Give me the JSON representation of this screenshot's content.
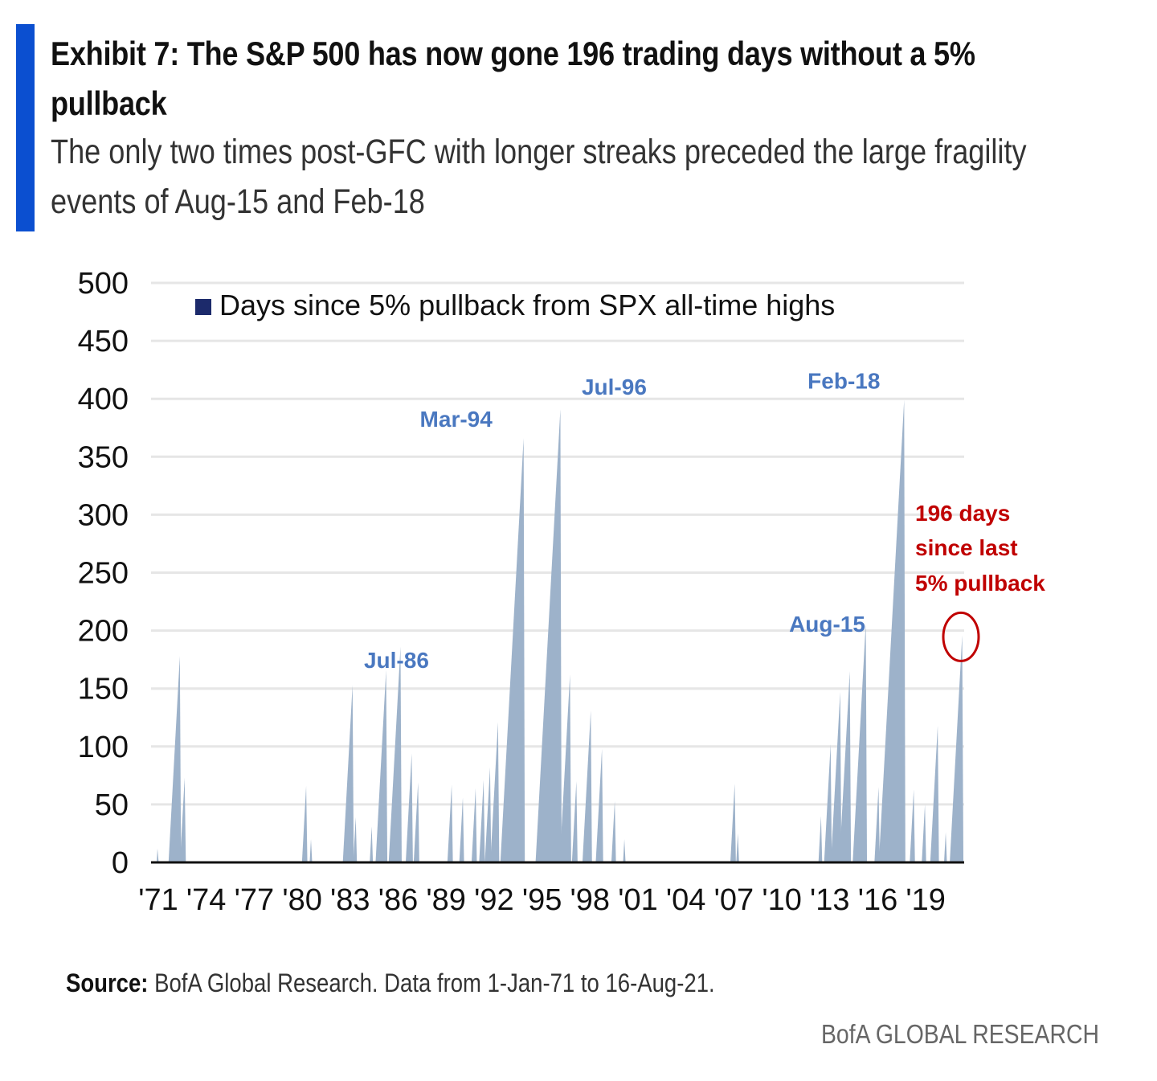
{
  "header": {
    "title": "Exhibit 7: The S&P 500 has now gone 196 trading days without a 5% pullback",
    "subtitle": "The only two times post-GFC with longer streaks preceded the large fragility events of Aug-15 and Feb-18"
  },
  "chart_data": {
    "type": "area",
    "title": "Exhibit 7: The S&P 500 has now gone 196 trading days without a 5% pullback",
    "ylabel": "",
    "xlabel": "",
    "ylim": [
      0,
      500
    ],
    "xlim": [
      1971,
      2021.7
    ],
    "grid": true,
    "legend": {
      "position": "top-left",
      "entries": [
        "Days since 5% pullback from SPX all-time highs"
      ]
    },
    "yticks": [
      0,
      50,
      100,
      150,
      200,
      250,
      300,
      350,
      400,
      450,
      500
    ],
    "xtick_labels": [
      "'71",
      "'74",
      "'77",
      "'80",
      "'83",
      "'86",
      "'89",
      "'92",
      "'95",
      "'98",
      "'01",
      "'04",
      "'07",
      "'10",
      "'13",
      "'16",
      "'19"
    ],
    "xtick_years": [
      1971,
      1974,
      1977,
      1980,
      1983,
      1986,
      1989,
      1992,
      1995,
      1998,
      2001,
      2004,
      2007,
      2010,
      2013,
      2016,
      2019
    ],
    "series": [
      {
        "name": "Days since 5% pullback from SPX all-time highs",
        "color": "#9db2ca",
        "note": "streak peaks: [year, trading days]; each streak ramps up linearly at 252 trading days/year then resets to 0",
        "peaks": [
          [
            1971.3,
            12
          ],
          [
            1972.7,
            178
          ],
          [
            1973.0,
            73
          ],
          [
            1980.6,
            66
          ],
          [
            1980.9,
            20
          ],
          [
            1983.5,
            153
          ],
          [
            1983.7,
            39
          ],
          [
            1984.7,
            31
          ],
          [
            1985.6,
            166
          ],
          [
            1986.5,
            186
          ],
          [
            1987.2,
            94
          ],
          [
            1987.6,
            69
          ],
          [
            1989.7,
            67
          ],
          [
            1990.4,
            56
          ],
          [
            1991.2,
            64
          ],
          [
            1991.7,
            71
          ],
          [
            1992.1,
            82
          ],
          [
            1992.6,
            121
          ],
          [
            1994.2,
            366
          ],
          [
            1996.5,
            391
          ],
          [
            1997.1,
            162
          ],
          [
            1997.5,
            70
          ],
          [
            1998.4,
            131
          ],
          [
            1999.1,
            98
          ],
          [
            1999.9,
            53
          ],
          [
            2000.5,
            20
          ],
          [
            2007.4,
            68
          ],
          [
            2007.6,
            25
          ],
          [
            2012.8,
            40
          ],
          [
            2013.4,
            102
          ],
          [
            2014.0,
            147
          ],
          [
            2014.6,
            165
          ],
          [
            2015.6,
            206
          ],
          [
            2016.4,
            65
          ],
          [
            2018.0,
            399
          ],
          [
            2018.6,
            63
          ],
          [
            2019.3,
            50
          ],
          [
            2020.1,
            118
          ],
          [
            2020.6,
            26
          ],
          [
            2021.63,
            196
          ]
        ]
      }
    ],
    "annotations": {
      "blue": [
        {
          "text": "Jul-86",
          "year": 1986.5,
          "value": 186
        },
        {
          "text": "Mar-94",
          "year": 1994.2,
          "value": 366
        },
        {
          "text": "Jul-96",
          "year": 1996.5,
          "value": 391
        },
        {
          "text": "Aug-15",
          "year": 2015.6,
          "value": 206
        },
        {
          "text": "Feb-18",
          "year": 2018.0,
          "value": 399
        }
      ],
      "red": [
        "196 days",
        "since last",
        "5% pullback"
      ],
      "current_value": 196
    },
    "colors": {
      "fill": "#9db2ca",
      "legend": "#1c2a6b",
      "label_blue": "#4a78c0",
      "label_red": "#c00000",
      "grid": "#e6e6e6",
      "axis": "#111111"
    }
  },
  "footer": {
    "source_label": "Source:",
    "source_text": " BofA Global Research. Data from 1-Jan-71 to 16-Aug-21.",
    "brand": "BofA GLOBAL RESEARCH"
  }
}
